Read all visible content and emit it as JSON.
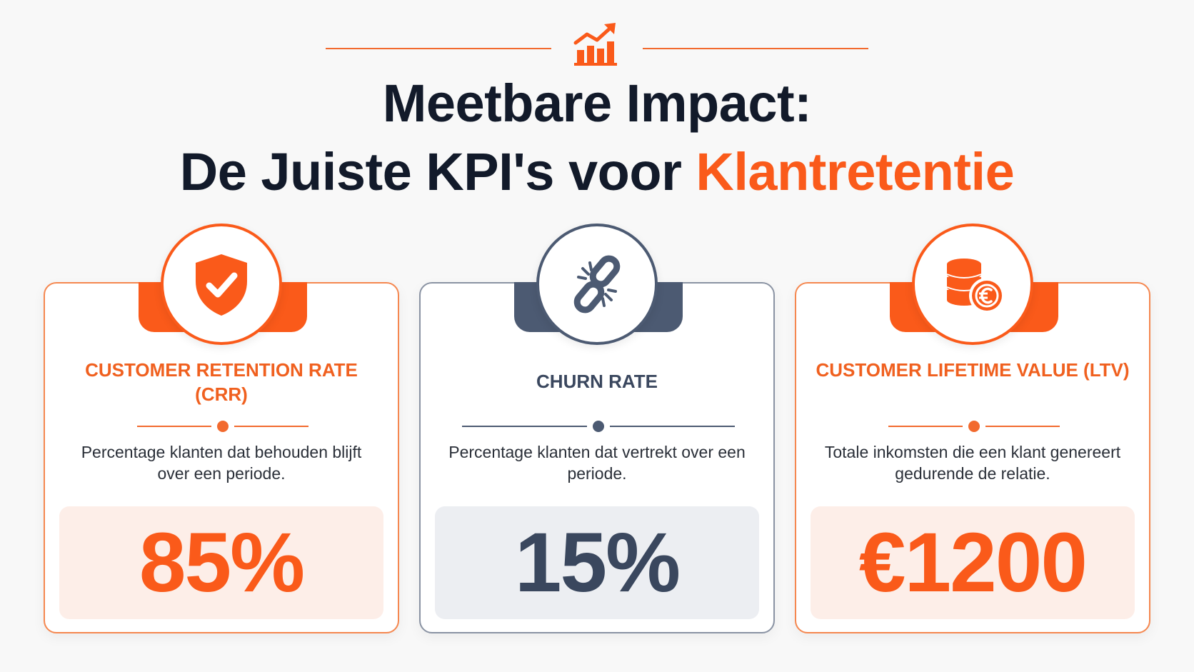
{
  "header": {
    "title_line1": "Meetbare Impact:",
    "title_line2_prefix": "De Juiste KPI's voor ",
    "title_line2_accent": "Klantretentie",
    "icon": "growth-chart-icon"
  },
  "colors": {
    "accent": "#fa5a1a",
    "slate": "#4c5a72",
    "dark_text": "#121a2a"
  },
  "kpis": [
    {
      "icon": "shield-check-icon",
      "title": "CUSTOMER RETENTION RATE (CRR)",
      "description": "Percentage klanten dat behouden blijft over een periode.",
      "value": "85%"
    },
    {
      "icon": "broken-link-icon",
      "title": "CHURN RATE",
      "description": "Percentage klanten dat vertrekt over een periode.",
      "value": "15%"
    },
    {
      "icon": "coins-euro-icon",
      "title": "CUSTOMER LIFETIME VALUE (LTV)",
      "description": "Totale inkomsten die een klant genereert gedurende de relatie.",
      "value": "€1200"
    }
  ]
}
